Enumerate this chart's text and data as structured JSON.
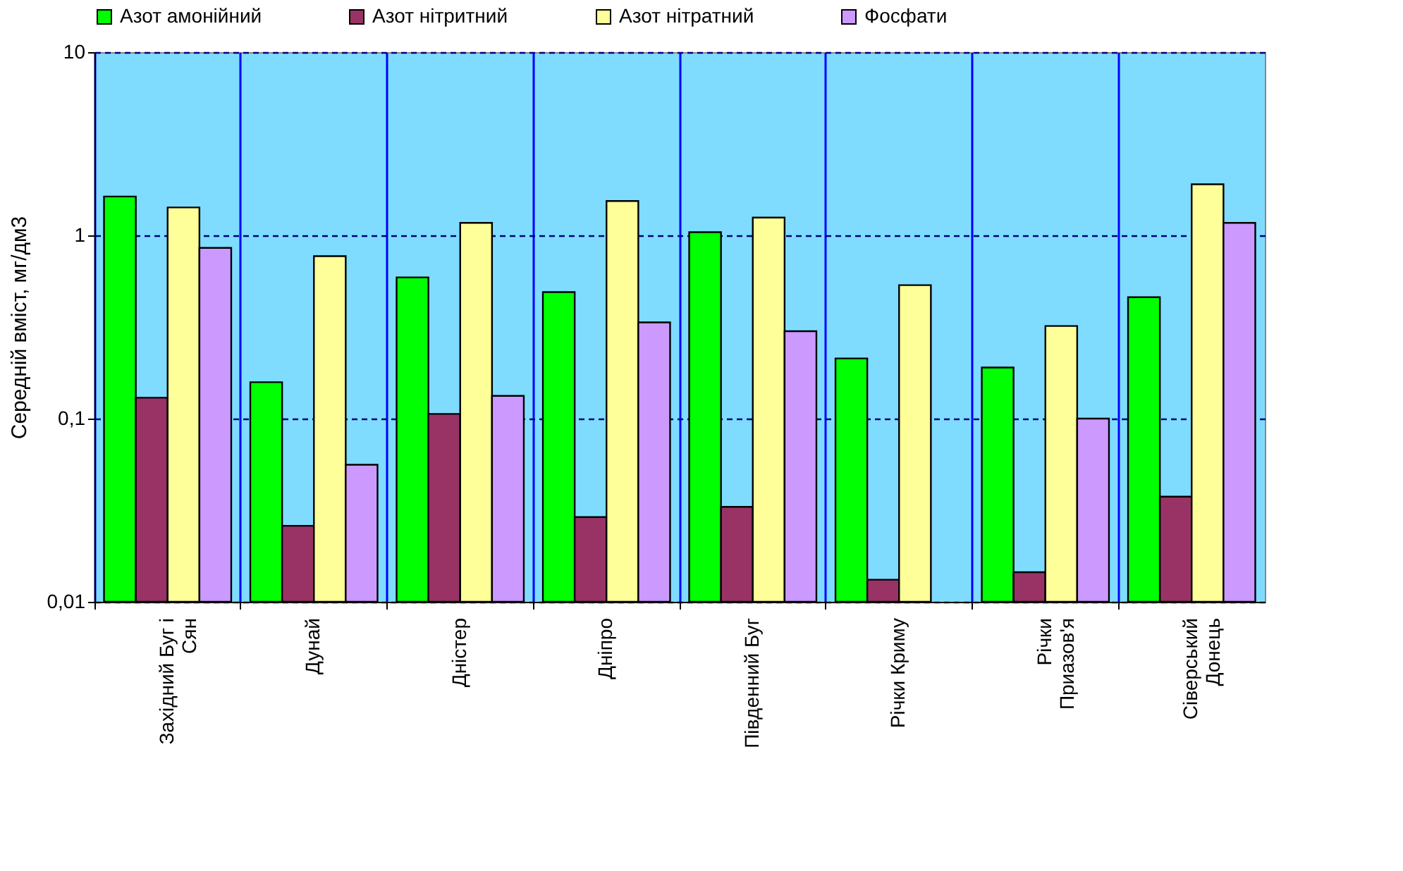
{
  "chart_data": {
    "type": "bar",
    "ylabel": "Середній вміст, мг/дм3",
    "categories": [
      "Західний Буг і\nСян",
      "Дунай",
      "Дністер",
      "Дніпро",
      "Південний Буг",
      "Річки Криму",
      "Річки\nПриазов'я",
      "Сіверський\nДонець"
    ],
    "series": [
      {
        "name": "Азот амонійний",
        "color": "#00ff00",
        "values": [
          1.63,
          0.158,
          0.59,
          0.49,
          1.04,
          0.213,
          0.19,
          0.46
        ]
      },
      {
        "name": "Азот нітритний",
        "color": "#993366",
        "values": [
          0.13,
          0.026,
          0.106,
          0.029,
          0.033,
          0.0132,
          0.0145,
          0.0375
        ]
      },
      {
        "name": "Азот нітратний",
        "color": "#ffff99",
        "values": [
          1.42,
          0.77,
          1.17,
          1.54,
          1.25,
          0.535,
          0.32,
          1.9
        ]
      },
      {
        "name": "Фосфати",
        "color": "#cc99ff",
        "values": [
          0.855,
          0.056,
          0.133,
          0.335,
          0.3,
          null,
          0.1,
          1.17
        ]
      }
    ],
    "log": true,
    "ylim": [
      0.01,
      10
    ],
    "yticks": [
      {
        "value": 0.01,
        "label": "0,01"
      },
      {
        "value": 0.1,
        "label": "0,1"
      },
      {
        "value": 1,
        "label": "1"
      },
      {
        "value": 10,
        "label": "10"
      }
    ],
    "grid": true,
    "legend": "top"
  }
}
